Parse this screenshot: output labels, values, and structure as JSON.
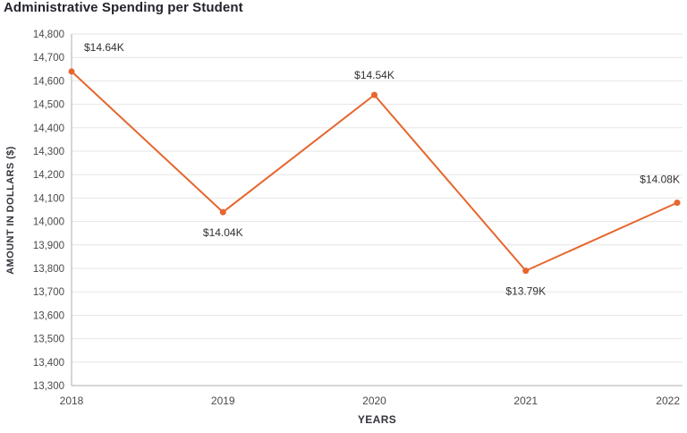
{
  "chart_data": {
    "type": "line",
    "title": "Administrative Spending per Student",
    "xlabel": "YEARS",
    "ylabel": "AMOUNT IN DOLLARS ($)",
    "categories": [
      "2018",
      "2019",
      "2020",
      "2021",
      "2022"
    ],
    "values": [
      14640,
      14040,
      14540,
      13790,
      14080
    ],
    "data_labels": [
      "$14.64K",
      "$14.04K",
      "$14.54K",
      "$13.79K",
      "$14.08K"
    ],
    "label_positions": [
      "above-right",
      "below",
      "above",
      "below",
      "above-left"
    ],
    "ylim": [
      13300,
      14800
    ],
    "ytick_step": 100,
    "grid": "horizontal",
    "legend": "none",
    "colors": {
      "line": "#e6662e",
      "marker": "#e6662e",
      "gridline": "#e6e6e6",
      "axis_line": "#adadad",
      "tick_label": "#4a4a4a",
      "data_label": "#303030",
      "title": "#24242e",
      "axis_title": "#34343e",
      "background": "#ffffff"
    }
  }
}
